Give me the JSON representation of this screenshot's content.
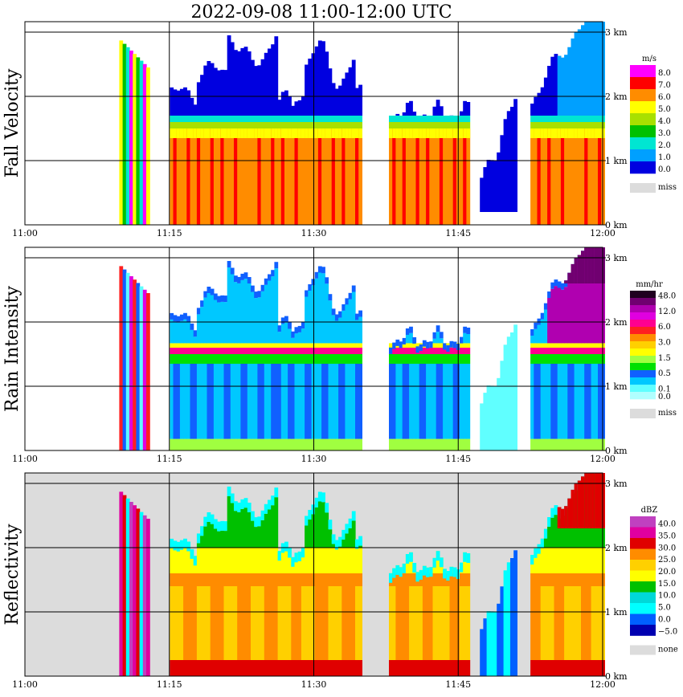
{
  "title": "2022-09-08   11:00-12:00 UTC",
  "chart_data": [
    {
      "type": "heatmap",
      "ylabel": "Fall Velocity",
      "x_ticks": [
        "11:00",
        "11:15",
        "11:30",
        "11:45",
        "12:00"
      ],
      "y_ticks": [
        "0 km",
        "1 km",
        "2 km",
        "3 km"
      ],
      "ylim_km": [
        0,
        3.3
      ],
      "xlim_min": [
        0,
        60
      ],
      "colorbar": {
        "unit": "m/s",
        "levels": [
          "8.0",
          "7.0",
          "6.0",
          "5.0",
          "4.0",
          "3.0",
          "2.0",
          "1.0",
          "0.0"
        ],
        "colors": [
          "#ff00ff",
          "#ff0000",
          "#ff8c00",
          "#ffff00",
          "#a8e000",
          "#00c000",
          "#00e6d2",
          "#00a0ff",
          "#0000e0"
        ],
        "missing_label": "miss",
        "missing_color": "#dcdcdc"
      }
    },
    {
      "type": "heatmap",
      "ylabel": "Rain Intensity",
      "x_ticks": [
        "11:00",
        "11:15",
        "11:30",
        "11:45",
        "12:00"
      ],
      "y_ticks": [
        "0 km",
        "1 km",
        "2 km",
        "3 km"
      ],
      "ylim_km": [
        0,
        3.3
      ],
      "xlim_min": [
        0,
        60
      ],
      "colorbar": {
        "unit": "mm/hr",
        "levels": [
          "48.0",
          "",
          "12.0",
          "",
          "6.0",
          "",
          "3.0",
          "",
          "1.5",
          "",
          "0.5",
          "",
          "0.1",
          "0.0"
        ],
        "colors": [
          "#200020",
          "#700070",
          "#b000b0",
          "#e000e0",
          "#ff0090",
          "#ff2020",
          "#ff8c00",
          "#ffd000",
          "#ffff00",
          "#a0ff40",
          "#00e000",
          "#1060ff",
          "#00c8ff",
          "#60ffff",
          "#b0ffff"
        ],
        "missing_label": "miss",
        "missing_color": "#dcdcdc"
      }
    },
    {
      "type": "heatmap",
      "ylabel": "Reflectivity",
      "x_ticks": [
        "11:00",
        "11:15",
        "11:30",
        "11:45",
        "12:00"
      ],
      "y_ticks": [
        "0 km",
        "1 km",
        "2 km",
        "3 km"
      ],
      "ylim_km": [
        0,
        3.3
      ],
      "xlim_min": [
        0,
        60
      ],
      "colorbar": {
        "unit": "dBZ",
        "levels": [
          "40.0",
          "35.0",
          "30.0",
          "25.0",
          "20.0",
          "15.0",
          "10.0",
          "5.0",
          "0.0",
          "−5.0"
        ],
        "colors": [
          "#c040c0",
          "#e000a0",
          "#e00000",
          "#ff8c00",
          "#ffd000",
          "#ffff00",
          "#00c000",
          "#00d8d8",
          "#00ffff",
          "#0060ff",
          "#0000b0"
        ],
        "missing_label": "none",
        "missing_color": "#dcdcdc"
      }
    }
  ]
}
